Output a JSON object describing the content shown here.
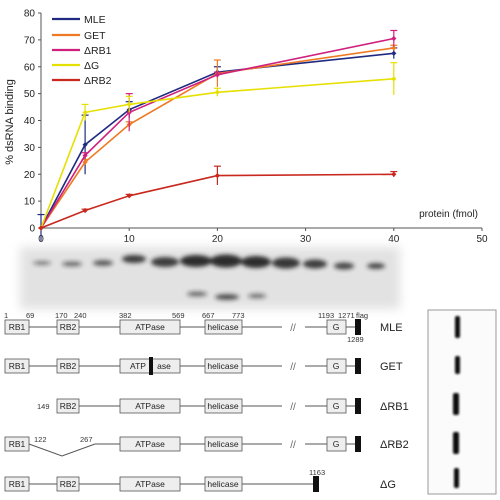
{
  "chart_data": {
    "type": "line",
    "ylabel": "% dsRNA binding",
    "xlabel": "protein (fmol)",
    "xlim": [
      0,
      50
    ],
    "ylim": [
      0,
      80
    ],
    "x_ticks": [
      0,
      10,
      20,
      30,
      40,
      50
    ],
    "y_ticks": [
      0,
      10,
      20,
      30,
      40,
      50,
      60,
      70,
      80
    ],
    "grid": false,
    "legend_position": "top-left",
    "x": [
      0,
      5,
      10,
      20,
      40
    ],
    "series": [
      {
        "name": "MLE",
        "color": "#1f2a80",
        "values": [
          0,
          31,
          44,
          58,
          65
        ],
        "errors": [
          5,
          11,
          3,
          2,
          2
        ]
      },
      {
        "name": "GET",
        "color": "#ef7a23",
        "values": [
          0,
          24.5,
          38.5,
          57.5,
          67
        ],
        "errors": [
          0,
          1,
          1,
          5,
          1
        ]
      },
      {
        "name": "ΔRB1",
        "color": "#d0207e",
        "values": [
          0,
          27,
          43,
          57,
          70.5
        ],
        "errors": [
          0,
          1,
          7,
          1,
          3
        ]
      },
      {
        "name": "ΔG",
        "color": "#e6e000",
        "values": [
          0,
          43,
          46,
          50.5,
          55.5
        ],
        "errors": [
          0,
          3,
          3,
          1.5,
          6
        ]
      },
      {
        "name": "ΔRB2",
        "color": "#c8281e",
        "values": [
          0,
          6.5,
          12,
          19.5,
          20
        ],
        "errors": [
          0,
          0.5,
          0.5,
          3.5,
          1
        ]
      }
    ]
  },
  "constructs": {
    "number_labels": [
      "1",
      "69",
      "170",
      "240",
      "382",
      "569",
      "667",
      "773",
      "1193",
      "1271",
      "flag",
      "1289"
    ],
    "domains": {
      "rb1": "RB1",
      "rb2": "RB2",
      "atpase": "ATPase",
      "atp": "ATP",
      "ase": "ase",
      "helicase": "helicase",
      "g": "G"
    },
    "rows": [
      {
        "name": "MLE"
      },
      {
        "name": "GET"
      },
      {
        "name": "ΔRB1",
        "start_label": "149"
      },
      {
        "name": "ΔRB2",
        "gap_labels": [
          "122",
          "267"
        ]
      },
      {
        "name": "ΔG",
        "end_label": "1163"
      }
    ]
  }
}
